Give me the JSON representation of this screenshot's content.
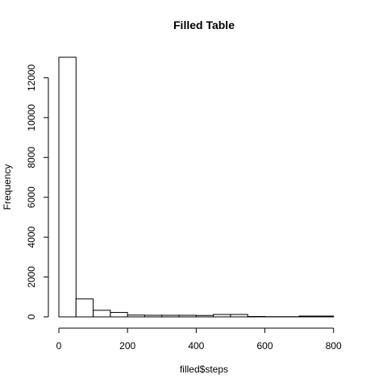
{
  "chart_data": {
    "type": "bar",
    "title": "Filled Table",
    "xlabel": "filled$steps",
    "ylabel": "Frequency",
    "bin_edges": [
      0,
      50,
      100,
      150,
      200,
      250,
      300,
      350,
      400,
      450,
      500,
      550,
      600,
      650,
      700,
      750,
      800,
      850
    ],
    "values": [
      13030,
      900,
      330,
      220,
      90,
      80,
      80,
      80,
      70,
      120,
      120,
      20,
      10,
      10,
      40,
      40,
      0
    ],
    "xlim": [
      0,
      850
    ],
    "ylim": [
      0,
      13030
    ],
    "x_ticks": [
      0,
      200,
      400,
      600,
      800
    ],
    "y_ticks": [
      0,
      2000,
      4000,
      6000,
      8000,
      10000,
      12000
    ],
    "grid": false
  }
}
